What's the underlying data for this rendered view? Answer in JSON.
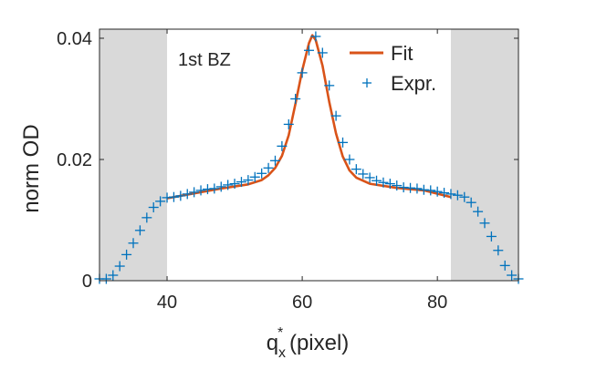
{
  "chart_data": {
    "type": "scatter",
    "xlabel_main": "q",
    "xlabel_sup": "*",
    "xlabel_sub": "x",
    "xlabel_rest": " (pixel)",
    "ylabel": "norm OD",
    "xlim": [
      30,
      92
    ],
    "ylim": [
      0,
      0.0415
    ],
    "xticks": [
      40,
      60,
      80
    ],
    "yticks": [
      0,
      0.02,
      0.04
    ],
    "ytick_labels": [
      "0",
      "0.02",
      "0.04"
    ],
    "annotation": "1st BZ",
    "shaded_regions": [
      [
        30,
        40
      ],
      [
        82,
        92
      ]
    ],
    "legend_position": "top-right",
    "series": [
      {
        "name": "Fit",
        "kind": "line",
        "color": "#D95319",
        "points": [
          [
            40,
            0.0136
          ],
          [
            44,
            0.0144
          ],
          [
            48,
            0.0152
          ],
          [
            52,
            0.0159
          ],
          [
            54,
            0.0166
          ],
          [
            55,
            0.0174
          ],
          [
            56,
            0.0186
          ],
          [
            57,
            0.0206
          ],
          [
            58,
            0.024
          ],
          [
            59,
            0.0292
          ],
          [
            60,
            0.0347
          ],
          [
            61,
            0.0392
          ],
          [
            61.5,
            0.0405
          ],
          [
            62,
            0.0397
          ],
          [
            63,
            0.0355
          ],
          [
            64,
            0.0295
          ],
          [
            65,
            0.0243
          ],
          [
            66,
            0.0205
          ],
          [
            67,
            0.0182
          ],
          [
            68,
            0.017
          ],
          [
            70,
            0.016
          ],
          [
            74,
            0.0153
          ],
          [
            78,
            0.0149
          ],
          [
            82,
            0.0138
          ]
        ]
      },
      {
        "name": "Expr.",
        "kind": "marker",
        "color": "#0072BD",
        "points": [
          [
            30,
            0.0003
          ],
          [
            31,
            0.0003
          ],
          [
            32,
            0.0009
          ],
          [
            33,
            0.0024
          ],
          [
            34,
            0.0043
          ],
          [
            35,
            0.0062
          ],
          [
            36,
            0.0083
          ],
          [
            37,
            0.0104
          ],
          [
            38,
            0.0121
          ],
          [
            39,
            0.0131
          ],
          [
            40,
            0.0137
          ],
          [
            41,
            0.0138
          ],
          [
            42,
            0.014
          ],
          [
            43,
            0.0143
          ],
          [
            44,
            0.0146
          ],
          [
            45,
            0.0149
          ],
          [
            46,
            0.0151
          ],
          [
            47,
            0.0152
          ],
          [
            48,
            0.0155
          ],
          [
            49,
            0.0158
          ],
          [
            50,
            0.016
          ],
          [
            51,
            0.0163
          ],
          [
            52,
            0.0166
          ],
          [
            53,
            0.0171
          ],
          [
            54,
            0.0177
          ],
          [
            55,
            0.0186
          ],
          [
            56,
            0.0198
          ],
          [
            57,
            0.0222
          ],
          [
            58,
            0.0258
          ],
          [
            59,
            0.03
          ],
          [
            60,
            0.0343
          ],
          [
            61,
            0.038
          ],
          [
            62,
            0.0403
          ],
          [
            63,
            0.0376
          ],
          [
            64,
            0.0322
          ],
          [
            65,
            0.0272
          ],
          [
            66,
            0.0228
          ],
          [
            67,
            0.02
          ],
          [
            68,
            0.0184
          ],
          [
            69,
            0.0176
          ],
          [
            70,
            0.017
          ],
          [
            71,
            0.0165
          ],
          [
            72,
            0.0162
          ],
          [
            73,
            0.016
          ],
          [
            74,
            0.0157
          ],
          [
            75,
            0.0154
          ],
          [
            76,
            0.0153
          ],
          [
            77,
            0.0152
          ],
          [
            78,
            0.015
          ],
          [
            79,
            0.0149
          ],
          [
            80,
            0.0147
          ],
          [
            81,
            0.0145
          ],
          [
            82,
            0.0143
          ],
          [
            83,
            0.0141
          ],
          [
            84,
            0.0138
          ],
          [
            85,
            0.0129
          ],
          [
            86,
            0.0114
          ],
          [
            87,
            0.0095
          ],
          [
            88,
            0.0073
          ],
          [
            89,
            0.005
          ],
          [
            90,
            0.0025
          ],
          [
            91,
            0.0009
          ],
          [
            92,
            0.0003
          ]
        ]
      }
    ]
  }
}
